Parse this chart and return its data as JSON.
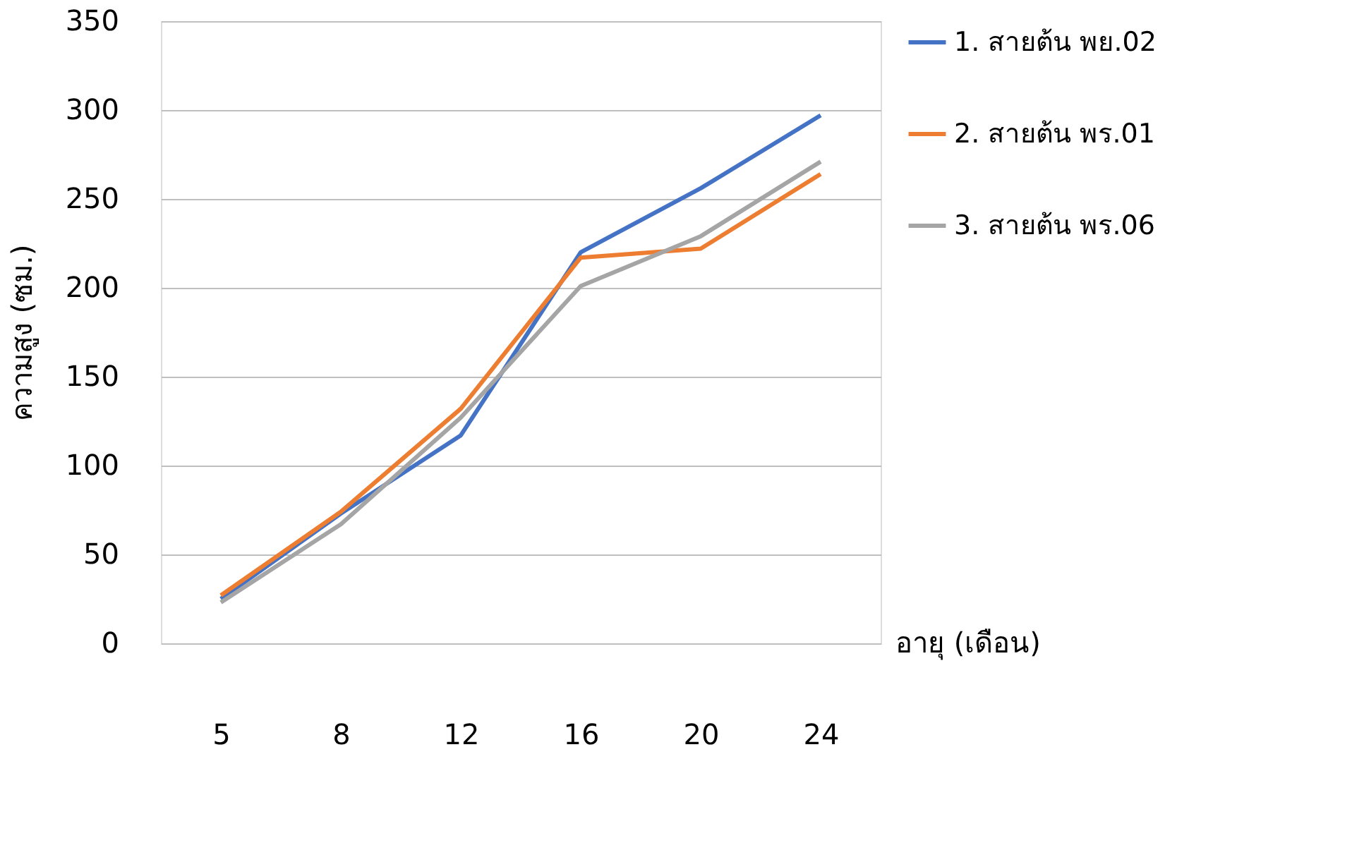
{
  "chart_data": {
    "type": "line",
    "xlabel": "อายุ (เดือน)",
    "ylabel": "ความสูง (ซม.)",
    "categories": [
      "5",
      "8",
      "12",
      "16",
      "20",
      "24"
    ],
    "series": [
      {
        "name": "1. สายต้น พย.02",
        "color": "#4472c4",
        "values": [
          25,
          73,
          117,
          220,
          256,
          297
        ]
      },
      {
        "name": "2. สายต้น พร.01",
        "color": "#ed7d31",
        "values": [
          27,
          74,
          132,
          217,
          222,
          264
        ]
      },
      {
        "name": "3. สายต้น พร.06",
        "color": "#a5a5a5",
        "values": [
          23,
          67,
          127,
          201,
          229,
          271
        ]
      }
    ],
    "ylim": [
      0,
      350
    ],
    "yticks": [
      0,
      50,
      100,
      150,
      200,
      250,
      300,
      350
    ],
    "grid": "y",
    "legend": "right",
    "marker": "none",
    "line_style": "solid"
  }
}
